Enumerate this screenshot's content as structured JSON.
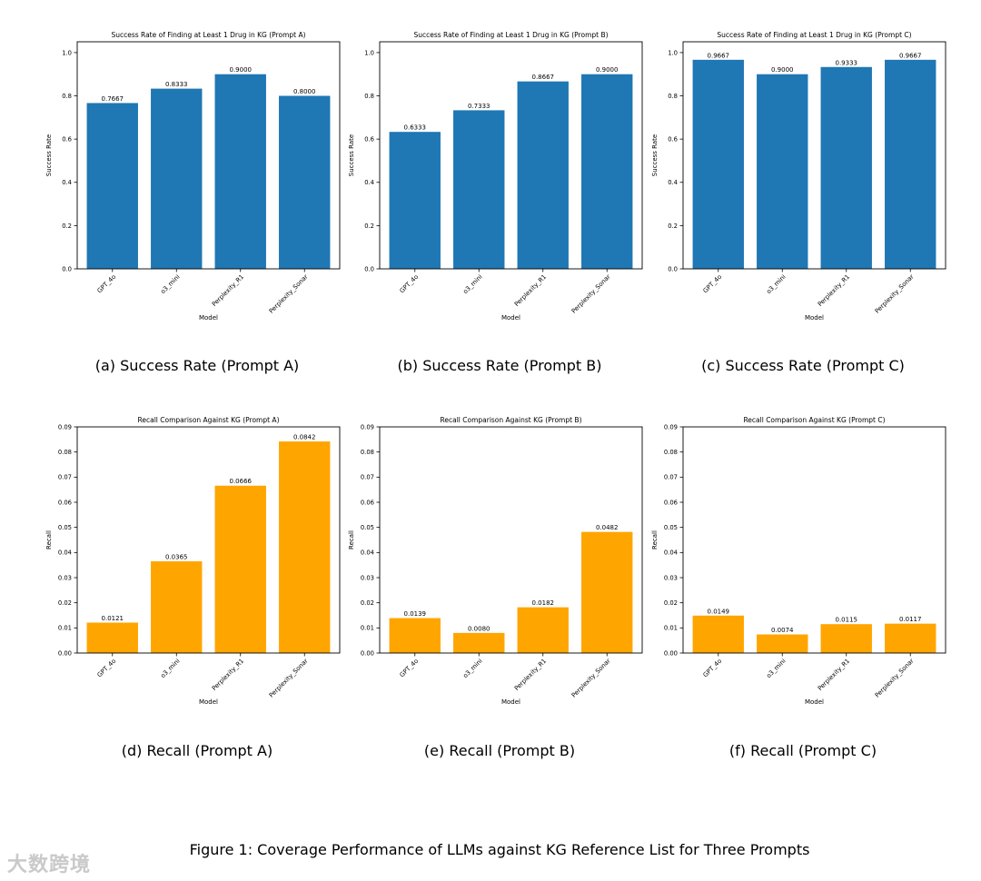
{
  "figure_caption": "Figure 1: Coverage Performance of LLMs against KG Reference List for Three Prompts",
  "watermark": "大数跨境",
  "colors": {
    "success_bar": "#1f77b4",
    "recall_bar": "#ffa500"
  },
  "subcaptions": [
    "(a) Success Rate (Prompt A)",
    "(b) Success Rate (Prompt B)",
    "(c) Success Rate (Prompt C)",
    "(d) Recall (Prompt A)",
    "(e) Recall (Prompt B)",
    "(f) Recall (Prompt C)"
  ],
  "chart_data": [
    {
      "type": "bar",
      "title": "Success Rate of Finding at Least 1 Drug in KG (Prompt A)",
      "xlabel": "Model",
      "ylabel": "Success Rate",
      "categories": [
        "GPT_4o",
        "o3_mini",
        "Perplexity_R1",
        "Perplexity_Sonar"
      ],
      "values": [
        0.7667,
        0.8333,
        0.9,
        0.8
      ],
      "value_labels": [
        "0.7667",
        "0.8333",
        "0.9000",
        "0.8000"
      ],
      "ylim": [
        0,
        1.05
      ],
      "yticks": [
        0.0,
        0.2,
        0.4,
        0.6,
        0.8,
        1.0
      ],
      "ytick_labels": [
        "0.0",
        "0.2",
        "0.4",
        "0.6",
        "0.8",
        "1.0"
      ],
      "color": "#1f77b4"
    },
    {
      "type": "bar",
      "title": "Success Rate of Finding at Least 1 Drug in KG (Prompt B)",
      "xlabel": "Model",
      "ylabel": "Success Rate",
      "categories": [
        "GPT_4o",
        "o3_mini",
        "Perplexity_R1",
        "Perplexity_Sonar"
      ],
      "values": [
        0.6333,
        0.7333,
        0.8667,
        0.9
      ],
      "value_labels": [
        "0.6333",
        "0.7333",
        "0.8667",
        "0.9000"
      ],
      "ylim": [
        0,
        1.05
      ],
      "yticks": [
        0.0,
        0.2,
        0.4,
        0.6,
        0.8,
        1.0
      ],
      "ytick_labels": [
        "0.0",
        "0.2",
        "0.4",
        "0.6",
        "0.8",
        "1.0"
      ],
      "color": "#1f77b4"
    },
    {
      "type": "bar",
      "title": "Success Rate of Finding at Least 1 Drug in KG (Prompt C)",
      "xlabel": "Model",
      "ylabel": "Success Rate",
      "categories": [
        "GPT_4o",
        "o3_mini",
        "Perplexity_R1",
        "Perplexity_Sonar"
      ],
      "values": [
        0.9667,
        0.9,
        0.9333,
        0.9667
      ],
      "value_labels": [
        "0.9667",
        "0.9000",
        "0.9333",
        "0.9667"
      ],
      "ylim": [
        0,
        1.05
      ],
      "yticks": [
        0.0,
        0.2,
        0.4,
        0.6,
        0.8,
        1.0
      ],
      "ytick_labels": [
        "0.0",
        "0.2",
        "0.4",
        "0.6",
        "0.8",
        "1.0"
      ],
      "color": "#1f77b4"
    },
    {
      "type": "bar",
      "title": "Recall Comparison Against KG (Prompt A)",
      "xlabel": "Model",
      "ylabel": "Recall",
      "categories": [
        "GPT_4o",
        "o3_mini",
        "Perplexity_R1",
        "Perplexity_Sonar"
      ],
      "values": [
        0.0121,
        0.0365,
        0.0666,
        0.0842
      ],
      "value_labels": [
        "0.0121",
        "0.0365",
        "0.0666",
        "0.0842"
      ],
      "ylim": [
        0,
        0.09
      ],
      "yticks": [
        0.0,
        0.01,
        0.02,
        0.03,
        0.04,
        0.05,
        0.06,
        0.07,
        0.08,
        0.09
      ],
      "ytick_labels": [
        "0.00",
        "0.01",
        "0.02",
        "0.03",
        "0.04",
        "0.05",
        "0.06",
        "0.07",
        "0.08",
        "0.09"
      ],
      "color": "#ffa500"
    },
    {
      "type": "bar",
      "title": "Recall Comparison Against KG (Prompt B)",
      "xlabel": "Model",
      "ylabel": "Recall",
      "categories": [
        "GPT_4o",
        "o3_mini",
        "Perplexity_R1",
        "Perplexity_Sonar"
      ],
      "values": [
        0.0139,
        0.008,
        0.0182,
        0.0482
      ],
      "value_labels": [
        "0.0139",
        "0.0080",
        "0.0182",
        "0.0482"
      ],
      "ylim": [
        0,
        0.09
      ],
      "yticks": [
        0.0,
        0.01,
        0.02,
        0.03,
        0.04,
        0.05,
        0.06,
        0.07,
        0.08,
        0.09
      ],
      "ytick_labels": [
        "0.00",
        "0.01",
        "0.02",
        "0.03",
        "0.04",
        "0.05",
        "0.06",
        "0.07",
        "0.08",
        "0.09"
      ],
      "color": "#ffa500"
    },
    {
      "type": "bar",
      "title": "Recall Comparison Against KG (Prompt C)",
      "xlabel": "Model",
      "ylabel": "Recall",
      "categories": [
        "GPT_4o",
        "o3_mini",
        "Perplexity_R1",
        "Perplexity_Sonar"
      ],
      "values": [
        0.0149,
        0.0074,
        0.0115,
        0.0117
      ],
      "value_labels": [
        "0.0149",
        "0.0074",
        "0.0115",
        "0.0117"
      ],
      "ylim": [
        0,
        0.09
      ],
      "yticks": [
        0.0,
        0.01,
        0.02,
        0.03,
        0.04,
        0.05,
        0.06,
        0.07,
        0.08,
        0.09
      ],
      "ytick_labels": [
        "0.00",
        "0.01",
        "0.02",
        "0.03",
        "0.04",
        "0.05",
        "0.06",
        "0.07",
        "0.08",
        "0.09"
      ],
      "color": "#ffa500"
    }
  ]
}
